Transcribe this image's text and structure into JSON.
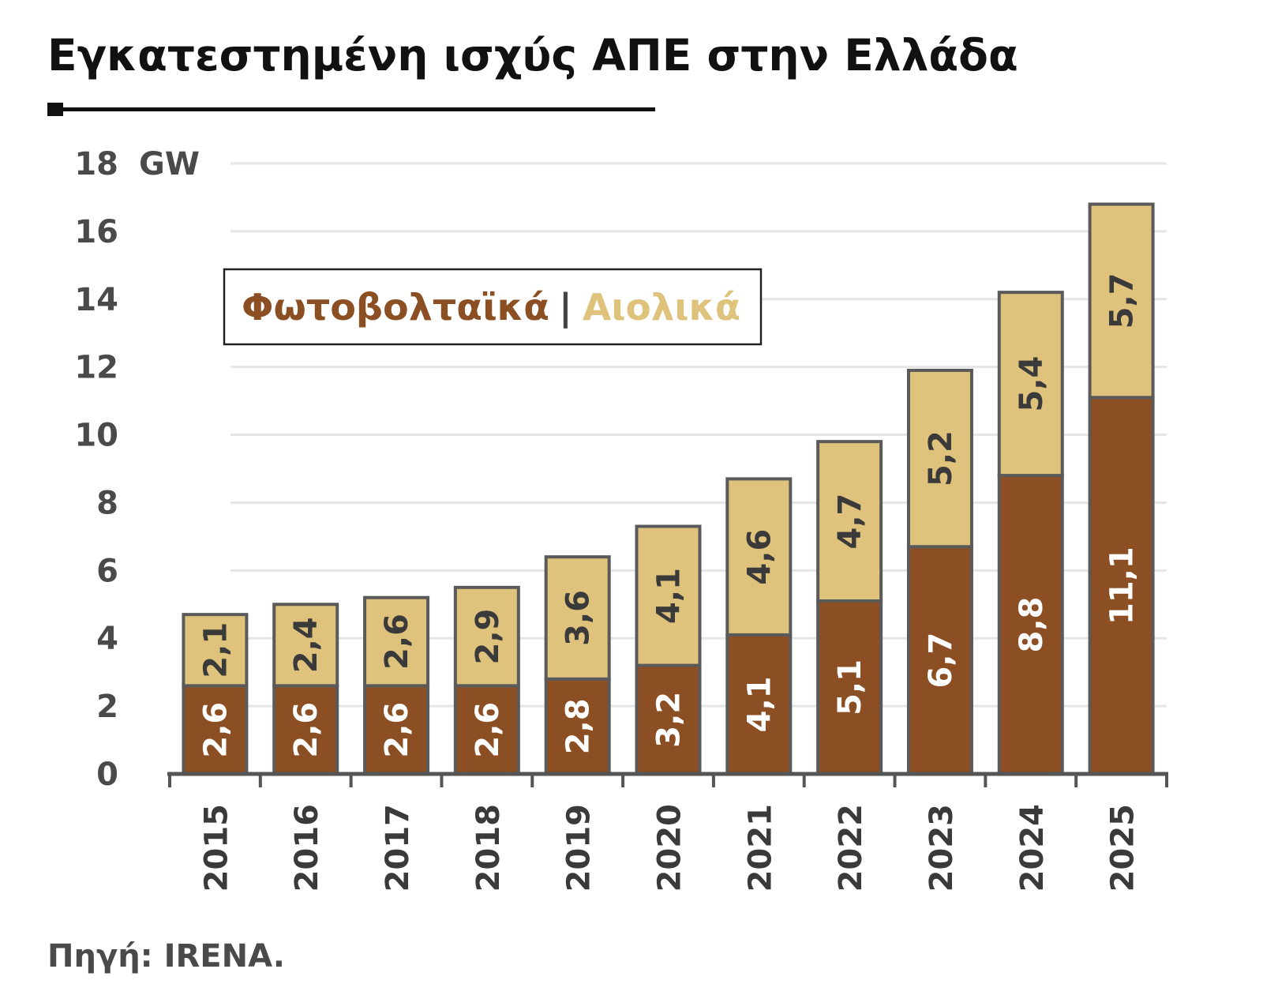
{
  "header": {
    "title": "Εγκατεστημένη ισχύς ΑΠΕ στην Ελλάδα"
  },
  "footer": {
    "source": "Πηγή: IRENA."
  },
  "chart_data": {
    "type": "bar",
    "stacked": true,
    "title": "Εγκατεστημένη ισχύς ΑΠΕ στην Ελλάδα",
    "unit": "GW",
    "categories": [
      "2015",
      "2016",
      "2017",
      "2018",
      "2019",
      "2020",
      "2021",
      "2022",
      "2023",
      "2024",
      "2025"
    ],
    "series": [
      {
        "name": "Φωτοβολταϊκά",
        "color": "#8b4f23",
        "label_color": "#ffffff",
        "values": [
          2.6,
          2.6,
          2.6,
          2.6,
          2.8,
          3.2,
          4.1,
          5.1,
          6.7,
          8.8,
          11.1
        ],
        "labels": [
          "2,6",
          "2,6",
          "2,6",
          "2,6",
          "2,8",
          "3,2",
          "4,1",
          "5,1",
          "6,7",
          "8,8",
          "11,1"
        ]
      },
      {
        "name": "Αιολικά",
        "color": "#dfc27c",
        "label_color": "#3a3a3a",
        "values": [
          2.1,
          2.4,
          2.6,
          2.9,
          3.6,
          4.1,
          4.6,
          4.7,
          5.2,
          5.4,
          5.7
        ],
        "labels": [
          "2,1",
          "2,4",
          "2,6",
          "2,9",
          "3,6",
          "4,1",
          "4,6",
          "4,7",
          "5,2",
          "5,4",
          "5,7"
        ]
      }
    ],
    "ylim": [
      0,
      18
    ],
    "yticks": [
      0,
      2,
      4,
      6,
      8,
      10,
      12,
      14,
      16,
      18
    ],
    "grid": true,
    "legend": {
      "position": "top-left",
      "separator": "|"
    },
    "colors": {
      "border": "#5a5a5a",
      "grid": "#e6e6e6",
      "axis": "#555555"
    }
  }
}
